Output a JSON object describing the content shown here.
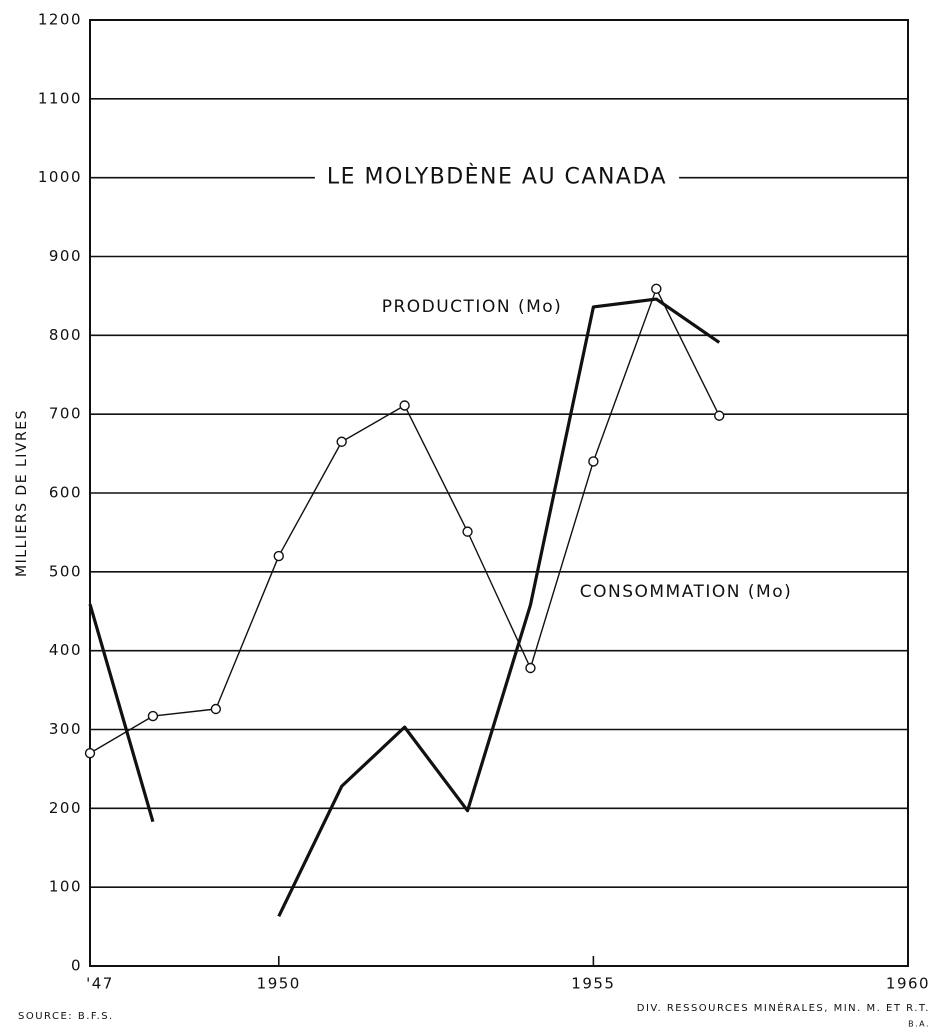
{
  "chart_data": {
    "type": "line",
    "title": "LE MOLYBDÈNE AU CANADA",
    "y_label": "MILLIERS DE LIVRES",
    "source": "SOURCE: B.F.S.",
    "credit": "DIV. RESSOURCES MINÉRALES, MIN. M. ET R.T.",
    "credit_initials": "B.A.",
    "x": [
      1947,
      1948,
      1949,
      1950,
      1951,
      1952,
      1953,
      1954,
      1955,
      1956,
      1957
    ],
    "series": [
      {
        "name": "PRODUCTION (Mo)",
        "color": "#111111",
        "width": 3.2,
        "markers": false,
        "values": [
          459,
          183,
          null,
          63,
          228,
          303,
          197,
          458,
          836,
          846,
          791
        ]
      },
      {
        "name": "CONSOMMATION (Mo)",
        "color": "#111111",
        "width": 1.4,
        "markers": true,
        "values": [
          270,
          317,
          326,
          520,
          665,
          711,
          551,
          378,
          640,
          859,
          698
        ]
      }
    ],
    "xlim": [
      1947,
      1960
    ],
    "xticks": [
      {
        "value": 1947,
        "label": "'47"
      },
      1950,
      1955,
      1960
    ],
    "ylim": [
      0,
      1200
    ],
    "yticks": [
      0,
      100,
      200,
      300,
      400,
      500,
      600,
      700,
      800,
      900,
      1000,
      1100,
      1200
    ],
    "grid": true
  }
}
